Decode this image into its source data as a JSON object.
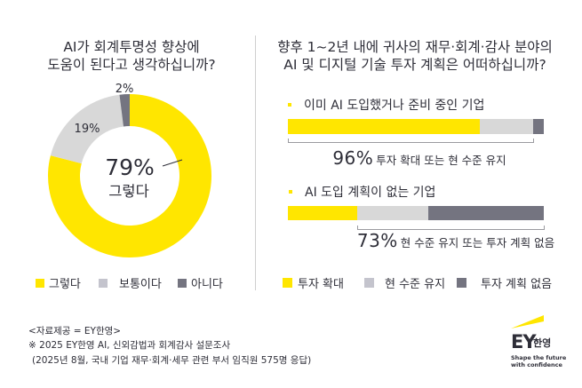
{
  "colors": {
    "yellow": "#FFE600",
    "light_gray": "#D8D8D8",
    "dark_gray": "#747480",
    "text": "#2E2E38",
    "legend_light_gray": "#C4C4CD"
  },
  "left_panel": {
    "title_lines": [
      "AI가 회계투명성 향상에",
      "도움이 된다고 생각하십니까?"
    ],
    "center_value": "79%",
    "center_label": "그렇다",
    "slice_labels": {
      "neutral": "19%",
      "no": "2%"
    },
    "legend": [
      {
        "label": "그렇다",
        "color": "#FFE600"
      },
      {
        "label": "보통이다",
        "color": "#C4C4CD"
      },
      {
        "label": "아니다",
        "color": "#747480"
      }
    ]
  },
  "right_panel": {
    "title_lines": [
      "향후 1~2년 내에 귀사의 재무·회계·감사 분야의",
      "AI 및 디지털 기술 투자 계획은 어떠하십니까?"
    ],
    "groups": [
      {
        "label": "이미 AI 도입했거나 준비 중인 기업",
        "summary_value": "96%",
        "summary_text": "투자 확대 또는 현 수준 유지"
      },
      {
        "label": "AI 도입 계획이 없는 기업",
        "summary_value": "73%",
        "summary_text": "현 수준 유지 또는 투자 계획 없음"
      }
    ],
    "legend": [
      {
        "label": "투자 확대",
        "color": "#FFE600"
      },
      {
        "label": "현 수준 유지",
        "color": "#C4C4CD"
      },
      {
        "label": "투자 계획 없음",
        "color": "#747480"
      }
    ]
  },
  "footer": {
    "lines": [
      "<자료제공 = EY한영>",
      "※ 2025 EY한영 AI, 신외감법과 회계감사 설문조사",
      "(2025년 8월, 국내 기업 재무·회계·세무 관련 부서 임직원 575명 응답)"
    ]
  },
  "logo": {
    "brand": "EY",
    "korean": "한영",
    "tagline_lines": [
      "Shape the future",
      "with confidence"
    ]
  },
  "chart_data": [
    {
      "type": "pie",
      "variant": "donut",
      "title": "AI가 회계투명성 향상에 도움이 된다고 생각하십니까?",
      "categories": [
        "그렇다",
        "보통이다",
        "아니다"
      ],
      "values": [
        79,
        19,
        2
      ],
      "colors": [
        "#FFE600",
        "#D8D8D8",
        "#747480"
      ],
      "labels": [
        "79%",
        "19%",
        "2%"
      ],
      "center_annotation": "79% 그렇다",
      "legend_position": "bottom"
    },
    {
      "type": "bar",
      "variant": "stacked-horizontal-100",
      "title": "향후 1~2년 내에 귀사의 재무·회계·감사 분야의 AI 및 디지털 기술 투자 계획은 어떠하십니까?",
      "categories": [
        "이미 AI 도입했거나 준비 중인 기업",
        "AI 도입 계획이 없는 기업"
      ],
      "series": [
        {
          "name": "투자 확대",
          "color": "#FFE600",
          "values": [
            75,
            27
          ]
        },
        {
          "name": "현 수준 유지",
          "color": "#D8D8D8",
          "values": [
            21,
            28
          ]
        },
        {
          "name": "투자 계획 없음",
          "color": "#747480",
          "values": [
            4,
            45
          ]
        }
      ],
      "annotations": [
        {
          "category": "이미 AI 도입했거나 준비 중인 기업",
          "segments": [
            0,
            1
          ],
          "text": "96% 투자 확대 또는 현 수준 유지"
        },
        {
          "category": "AI 도입 계획이 없는 기업",
          "segments": [
            1,
            2
          ],
          "text": "73% 현 수준 유지 또는 투자 계획 없음"
        }
      ],
      "xlim": [
        0,
        100
      ],
      "legend_position": "bottom"
    }
  ]
}
